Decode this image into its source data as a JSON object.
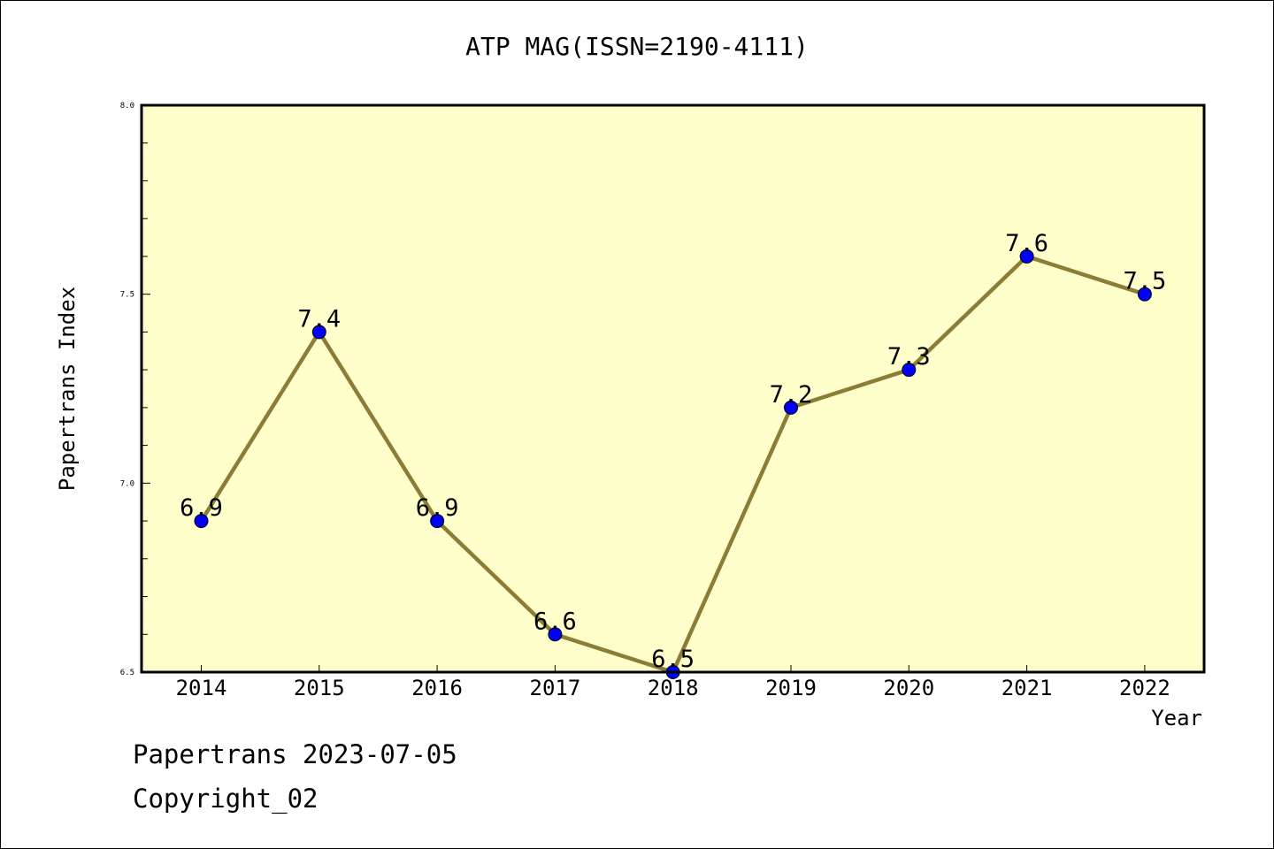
{
  "title": "ATP MAG(ISSN=2190-4111)",
  "footer": {
    "line1": "Papertrans 2023-07-05",
    "line2": "Copyright_02"
  },
  "colors": {
    "plot_background": "#ffffcc",
    "line": "#8b7d36",
    "marker": "#0000ff"
  },
  "chart_data": {
    "type": "line",
    "categories": [
      "2014",
      "2015",
      "2016",
      "2017",
      "2018",
      "2019",
      "2020",
      "2021",
      "2022"
    ],
    "series": [
      {
        "values": [
          6.9,
          7.4,
          6.9,
          6.6,
          6.5,
          7.2,
          7.3,
          7.6,
          7.5
        ]
      }
    ],
    "data_labels": [
      "6.9",
      "7.4",
      "6.9",
      "6.6",
      "6.5",
      "7.2",
      "7.3",
      "7.6",
      "7.5"
    ],
    "xlabel": "Year",
    "ylabel": "Papertrans Index",
    "ylim": [
      6.5,
      8.0
    ],
    "yticks_major": [
      "6.5",
      "7.0",
      "7.5",
      "8.0"
    ],
    "ytick_minor_step": 0.1,
    "grid": false,
    "legend": "none"
  }
}
